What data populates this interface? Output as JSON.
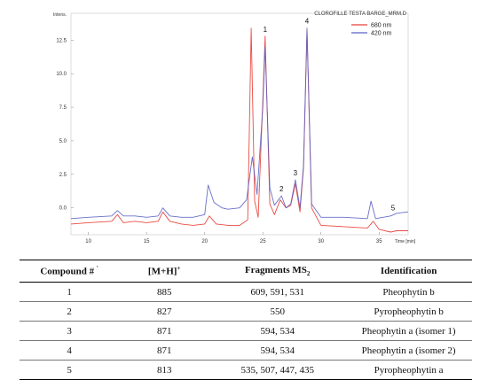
{
  "chart_data": {
    "type": "line",
    "title": "CLOROFILLE TESTA BARGE_MRM.D",
    "ylabel": "Intens.",
    "xlabel": "Time [min]",
    "x_ticks": [
      10,
      15,
      20,
      25,
      30,
      35
    ],
    "y_ticks": [
      0.0,
      2.5,
      5.0,
      7.5,
      10.0,
      12.5
    ],
    "y_tick_labels": [
      "0.0",
      "2.5",
      "5.0",
      "7.5",
      "10.0",
      "12.5"
    ],
    "xlim": [
      8.5,
      37.5
    ],
    "ylim": [
      -2.0,
      14.5
    ],
    "legend_position": "top-right",
    "series": [
      {
        "name": "680 nm",
        "color": "#e8423a",
        "x": [
          8.5,
          10,
          12,
          12.5,
          13,
          14,
          15,
          16,
          16.4,
          17,
          18,
          19,
          20,
          20.4,
          21,
          22,
          23,
          23.7,
          24.0,
          24.3,
          24.6,
          25.0,
          25.2,
          25.6,
          26,
          26.5,
          27.0,
          27.4,
          27.8,
          28.2,
          28.5,
          28.8,
          29.2,
          30,
          32,
          34,
          34.5,
          35,
          36,
          36.5,
          37.5
        ],
        "y": [
          -1.2,
          -1.1,
          -1.0,
          -0.5,
          -1.1,
          -1.0,
          -1.1,
          -1.0,
          -0.3,
          -1.0,
          -1.2,
          -1.3,
          -1.2,
          -0.6,
          -1.2,
          -1.3,
          -1.3,
          -0.9,
          13.4,
          0.5,
          -0.7,
          8.0,
          12.8,
          0.3,
          -0.5,
          0.6,
          0.0,
          0.2,
          1.8,
          -0.3,
          3.0,
          13.2,
          0.0,
          -1.3,
          -1.4,
          -1.5,
          -1.0,
          -1.6,
          -1.8,
          -1.7,
          -1.7
        ]
      },
      {
        "name": "420 nm",
        "color": "#5a5fc4",
        "x": [
          8.5,
          10,
          12,
          12.5,
          13,
          14,
          15,
          16,
          16.4,
          17,
          18,
          19,
          20,
          20.3,
          20.8,
          21.5,
          22,
          23,
          23.6,
          24.1,
          24.5,
          25.0,
          25.2,
          25.6,
          26,
          26.6,
          27.0,
          27.4,
          27.8,
          28.2,
          28.5,
          28.8,
          29.2,
          30,
          32,
          34,
          34.3,
          34.7,
          36,
          36.5,
          37.5
        ],
        "y": [
          -0.8,
          -0.7,
          -0.6,
          -0.2,
          -0.6,
          -0.6,
          -0.7,
          -0.6,
          0.0,
          -0.6,
          -0.7,
          -0.7,
          -0.5,
          1.7,
          0.4,
          0.0,
          -0.1,
          0.0,
          0.6,
          3.8,
          1.0,
          7.5,
          12.0,
          1.5,
          0.2,
          0.9,
          0.0,
          0.3,
          2.1,
          0.0,
          3.2,
          13.4,
          0.3,
          -0.7,
          -0.7,
          -0.8,
          0.5,
          -0.8,
          -0.6,
          -0.4,
          -0.3
        ]
      }
    ],
    "peak_labels": [
      {
        "text": "1",
        "x": 25.2,
        "y": 12.8
      },
      {
        "text": "2",
        "x": 26.6,
        "y": 0.9
      },
      {
        "text": "3",
        "x": 27.8,
        "y": 2.1
      },
      {
        "text": "4",
        "x": 28.8,
        "y": 13.4
      },
      {
        "text": "5",
        "x": 36.2,
        "y": -0.5
      }
    ]
  },
  "table": {
    "headers": [
      "Compound #",
      "[M+H]",
      "Fragments MS",
      "Identification"
    ],
    "header_marks": {
      "compound_mark": "'",
      "mh_sup": "+",
      "fragments_sub": "2"
    },
    "rows": [
      [
        "1",
        "885",
        "609, 591, 531",
        "Pheophytin b"
      ],
      [
        "2",
        "827",
        "550",
        "Pyropheophytin b"
      ],
      [
        "3",
        "871",
        "594, 534",
        "Pheophytin a (isomer 1)"
      ],
      [
        "4",
        "871",
        "594, 534",
        "Pheophytin a (isomer 2)"
      ],
      [
        "5",
        "813",
        "535, 507, 447, 435",
        "Pyropheophytin a"
      ]
    ]
  }
}
